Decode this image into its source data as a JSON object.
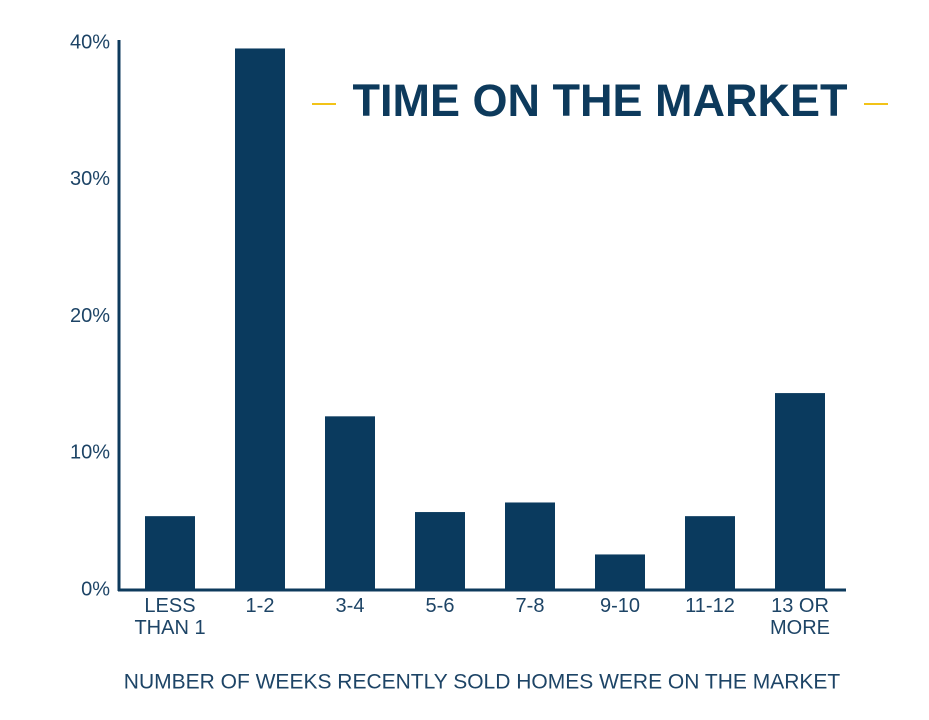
{
  "chart_data": {
    "type": "bar",
    "title": "TIME ON THE MARKET",
    "x_label": "NUMBER OF WEEKS RECENTLY SOLD HOMES WERE ON THE MARKET",
    "categories": [
      "LESS THAN 1",
      "1-2",
      "3-4",
      "5-6",
      "7-8",
      "9-10",
      "11-12",
      "13 OR MORE"
    ],
    "values": [
      5.4,
      39.6,
      12.7,
      5.7,
      6.4,
      2.6,
      5.4,
      14.4
    ],
    "color": "#0a3a5e",
    "ylim": [
      0,
      40
    ],
    "yticks": [
      {
        "value": 0,
        "label": "0%"
      },
      {
        "value": 10,
        "label": "10%"
      },
      {
        "value": 20,
        "label": "20%"
      },
      {
        "value": 30,
        "label": "30%"
      },
      {
        "value": 40,
        "label": "40%"
      }
    ],
    "grid": false
  }
}
